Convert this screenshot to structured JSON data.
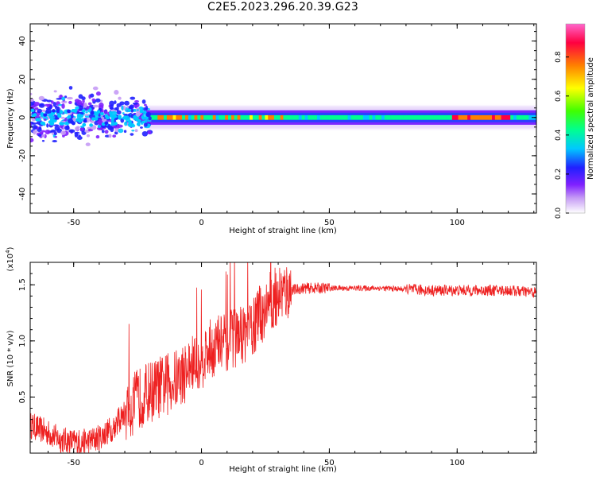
{
  "title": "C2E5.2023.296.20.39.G23",
  "colors": {
    "snr_line": "#ee2020",
    "spectrogram_scale": [
      "#ffffff",
      "#c59bf5",
      "#8020ff",
      "#2020ff",
      "#00c8ff",
      "#00ff90",
      "#40ff00",
      "#ffff00",
      "#ff8000",
      "#ff0040",
      "#ff66cc"
    ]
  },
  "chart_data": [
    {
      "type": "heatmap",
      "title": "C2E5.2023.296.20.39.G23",
      "xlabel": "Height of straight line (km)",
      "ylabel": "Frequency (Hz)",
      "xlim": [
        -67,
        131
      ],
      "ylim": [
        -50,
        49
      ],
      "xticks": [
        -50,
        0,
        50,
        100
      ],
      "yticks": [
        -40,
        -20,
        0,
        20,
        40
      ],
      "colorbar": {
        "label": "Normalized spectral amplitude",
        "range": [
          0,
          0.97
        ],
        "ticks": [
          0.0,
          0.2,
          0.4,
          0.6,
          0.8
        ]
      },
      "features": [
        {
          "x_range": [
            -67,
            -20
          ],
          "center_hz": 0,
          "spread_hz": [
            -15,
            15
          ],
          "max_amplitude": 0.35,
          "note": "scattered"
        },
        {
          "x_range": [
            -22,
            131
          ],
          "center_hz": 0,
          "spread_hz": [
            -4,
            4
          ],
          "max_amplitude": 0.6
        },
        {
          "x_range": [
            97,
            120
          ],
          "center_hz": 0,
          "max_amplitude": 0.95
        }
      ]
    },
    {
      "type": "line",
      "xlabel": "Height of straight line (km)",
      "ylabel": "SNR (10 * v/v)",
      "y_multiplier": "(x10^4)",
      "xlim": [
        -67,
        131
      ],
      "ylim": [
        0,
        1.7
      ],
      "xticks": [
        -50,
        0,
        50,
        100
      ],
      "yticks": [
        0.5,
        1.0,
        1.5
      ],
      "series": [
        {
          "x": [
            -67,
            -60,
            -55,
            -50,
            -45,
            -40,
            -35,
            -30,
            -25,
            -20,
            -15,
            -10,
            -5,
            0,
            5,
            10,
            15,
            20,
            25,
            30,
            35,
            40,
            45,
            50,
            60,
            70,
            80,
            90,
            100,
            110,
            120,
            131
          ],
          "values": [
            0.25,
            0.18,
            0.12,
            0.1,
            0.1,
            0.14,
            0.22,
            0.35,
            0.48,
            0.55,
            0.6,
            0.65,
            0.75,
            0.85,
            0.95,
            1.0,
            1.05,
            1.12,
            1.3,
            1.42,
            1.45,
            1.47,
            1.47,
            1.47,
            1.47,
            1.47,
            1.46,
            1.45,
            1.45,
            1.45,
            1.45,
            1.43
          ]
        }
      ]
    }
  ]
}
